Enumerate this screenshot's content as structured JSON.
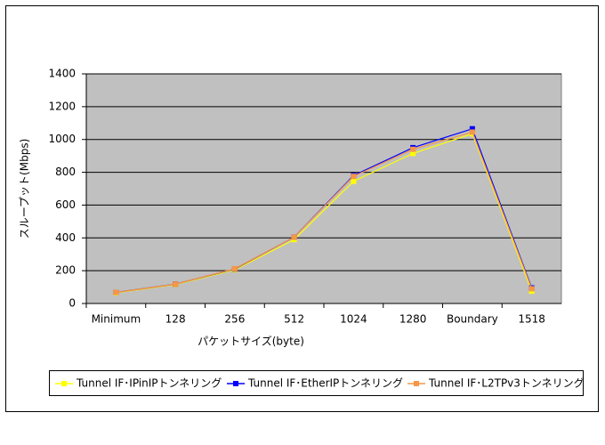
{
  "chart_data": {
    "type": "line",
    "x_label": "パケットサイズ(byte)",
    "y_label": "スループット(Mbps)",
    "categories": [
      "Minimum",
      "128",
      "256",
      "512",
      "1024",
      "1280",
      "Boundary",
      "1518"
    ],
    "series": [
      {
        "name": "Tunnel IF･IPinIPトンネリング",
        "color": "#ffff00",
        "values": [
          65,
          115,
          205,
          390,
          745,
          915,
          1035,
          75
        ]
      },
      {
        "name": "Tunnel IF･EtherIPトンネリング",
        "color": "#0000ff",
        "values": [
          68,
          118,
          210,
          405,
          780,
          950,
          1065,
          95
        ]
      },
      {
        "name": "Tunnel IF･L2TPv3トンネリング",
        "color": "#f79646",
        "values": [
          68,
          118,
          212,
          405,
          775,
          940,
          1045,
          90
        ]
      }
    ],
    "ylim": [
      0,
      1400
    ],
    "yticks": [
      0,
      200,
      400,
      600,
      800,
      1000,
      1200,
      1400
    ],
    "grid": true,
    "legend": "bottom"
  }
}
